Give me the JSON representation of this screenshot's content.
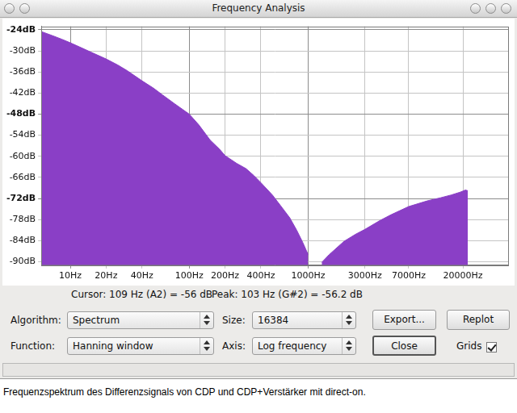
{
  "window": {
    "title": "Frequency Analysis"
  },
  "chart_data": {
    "type": "area",
    "x": [
      5.7,
      7,
      8.5,
      10,
      12,
      15,
      20,
      25,
      30,
      40,
      50,
      60,
      75,
      100,
      120,
      150,
      180,
      200,
      250,
      300,
      350,
      400,
      500,
      600,
      700,
      800,
      900,
      1000,
      1100,
      1300,
      1500,
      2000,
      2500,
      3000,
      4000,
      5000,
      7000,
      10000,
      13000,
      16000,
      19000,
      21000,
      22000
    ],
    "values": [
      -24.5,
      -25.6,
      -26.7,
      -27.7,
      -28.9,
      -30.4,
      -32.3,
      -34,
      -35.6,
      -38.5,
      -40.6,
      -42.6,
      -45,
      -48,
      -51,
      -55.4,
      -58,
      -59.8,
      -62,
      -63.5,
      -65.5,
      -67.5,
      -71,
      -74.5,
      -77.5,
      -81,
      -84.5,
      -88,
      null,
      -90.2,
      -88,
      -84.2,
      -82.2,
      -80.8,
      -78.3,
      -76.6,
      -74.3,
      -72.7,
      -71.8,
      -71,
      -70.2,
      -69.6,
      -69.8
    ],
    "color": "#8a3fc6",
    "log": "x",
    "grid": true,
    "xlim": [
      5.7,
      48000
    ],
    "xticks": [
      {
        "value": 10,
        "label": "10Hz"
      },
      {
        "value": 20,
        "label": "20Hz"
      },
      {
        "value": 40,
        "label": "40Hz"
      },
      {
        "value": 100,
        "label": "100Hz"
      },
      {
        "value": 200,
        "label": "200Hz"
      },
      {
        "value": 400,
        "label": "400Hz"
      },
      {
        "value": 1000,
        "label": "1000Hz"
      },
      {
        "value": 3000,
        "label": "3000Hz"
      },
      {
        "value": 7000,
        "label": "7000Hz"
      },
      {
        "value": 20000,
        "label": "20000Hz"
      }
    ],
    "ylim": [
      -91,
      -23
    ],
    "yticks": [
      {
        "value": -24,
        "label": "-24dB"
      },
      {
        "value": -30,
        "label": "-30dB"
      },
      {
        "value": -36,
        "label": "-36dB"
      },
      {
        "value": -42,
        "label": "-42dB"
      },
      {
        "value": -48,
        "label": "-48dB"
      },
      {
        "value": -54,
        "label": "-54dB"
      },
      {
        "value": -60,
        "label": "-60dB"
      },
      {
        "value": -66,
        "label": "-66dB"
      },
      {
        "value": -72,
        "label": "-72dB"
      },
      {
        "value": -78,
        "label": "-78dB"
      },
      {
        "value": -84,
        "label": "-84dB"
      },
      {
        "value": -90,
        "label": "-90dB"
      }
    ]
  },
  "readout": {
    "cursor": "Cursor: 109 Hz (A2) = -56 dB",
    "peak": "Peak: 103 Hz (G#2) = -56.2 dB"
  },
  "controls": {
    "algorithm": {
      "label": "Algorithm:",
      "value": "Spectrum"
    },
    "size": {
      "label": "Size:",
      "value": "16384"
    },
    "function": {
      "label": "Function:",
      "value": "Hanning window"
    },
    "axis": {
      "label": "Axis:",
      "value": "Log frequency"
    },
    "buttons": [
      "Export...",
      "Replot",
      "Close"
    ],
    "grids": {
      "label": "Grids",
      "checked": true
    }
  },
  "caption": "Frequenzspektrum des Differenzsignals von CDP und CDP+Verstärker mit direct-on."
}
